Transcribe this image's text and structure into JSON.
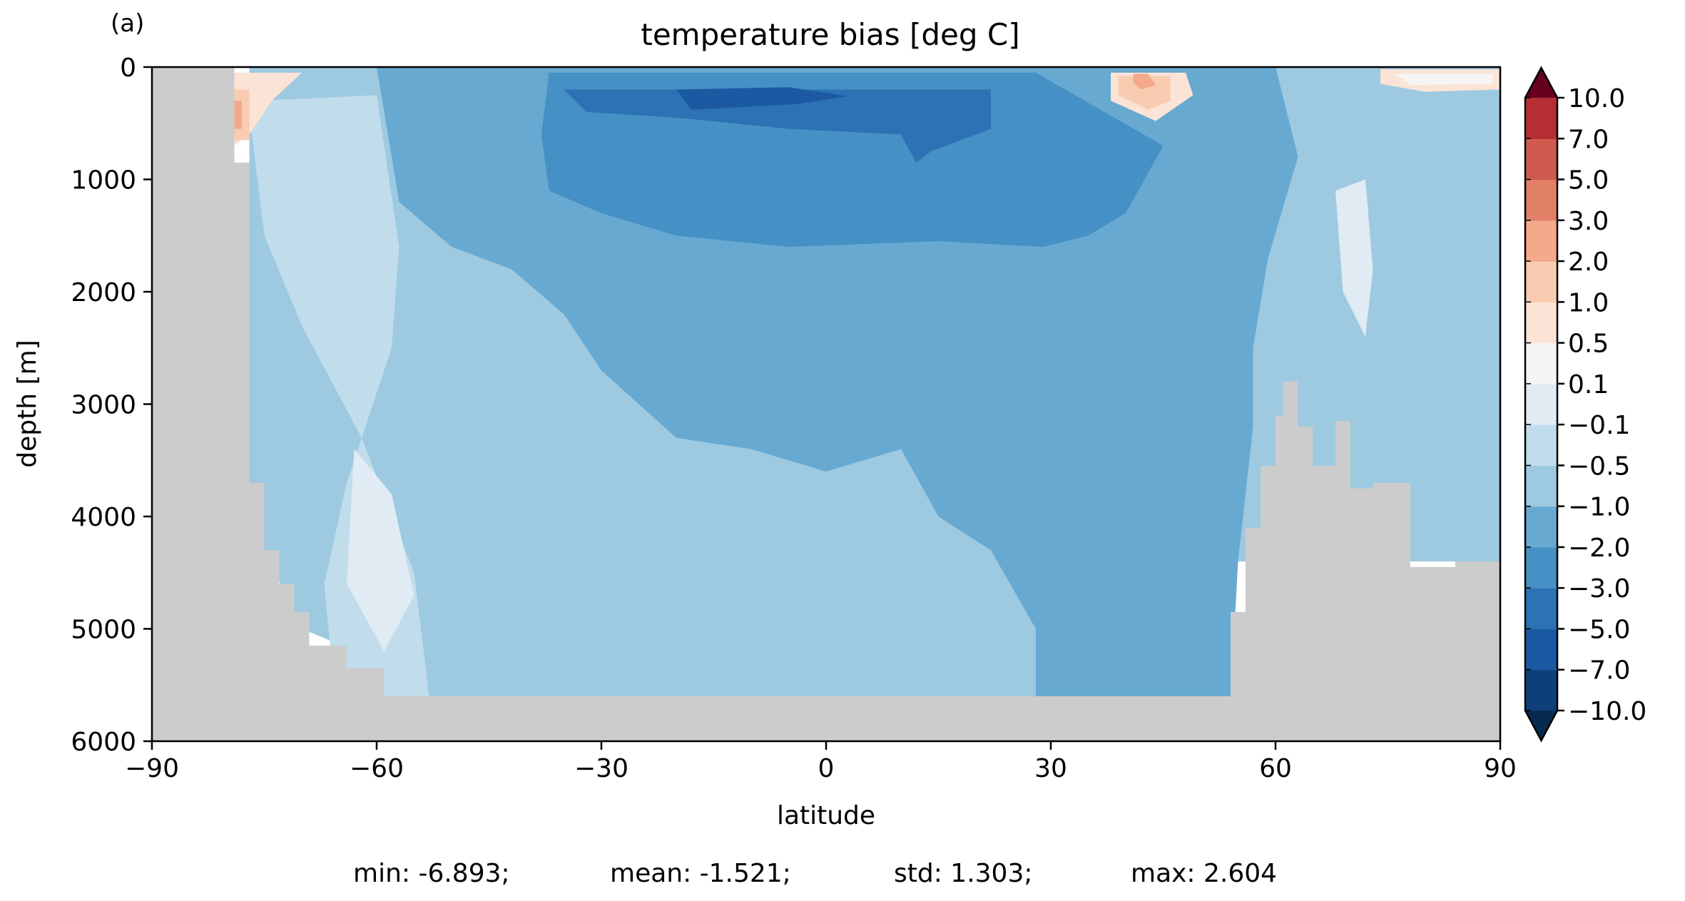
{
  "panel_label": "(a)",
  "chart_data": {
    "type": "contour",
    "title": "temperature bias [deg C]",
    "xlabel": "latitude",
    "ylabel": "depth [m]",
    "xlim": [
      -90,
      90
    ],
    "ylim": [
      6000,
      0
    ],
    "xticks": [
      -90,
      -60,
      -30,
      0,
      30,
      60,
      90
    ],
    "xtick_labels": [
      "−90",
      "−60",
      "−30",
      "0",
      "30",
      "60",
      "90"
    ],
    "yticks": [
      0,
      1000,
      2000,
      3000,
      4000,
      5000,
      6000
    ],
    "ytick_labels": [
      "0",
      "1000",
      "2000",
      "3000",
      "4000",
      "5000",
      "6000"
    ],
    "colorbar": {
      "extend": "both",
      "levels": [
        -10,
        -7,
        -5,
        -3,
        -2,
        -1,
        -0.5,
        -0.1,
        0.1,
        0.5,
        1,
        2,
        3,
        5,
        7,
        10
      ],
      "labels": [
        "−10.0",
        "−7.0",
        "−5.0",
        "−3.0",
        "−2.0",
        "−1.0",
        "−0.5",
        "−0.1",
        "0.1",
        "0.5",
        "1.0",
        "2.0",
        "3.0",
        "5.0",
        "7.0",
        "10.0"
      ],
      "colors": [
        "#0f3f79",
        "#1b5aa2",
        "#2c72b4",
        "#4590c4",
        "#67a9d1",
        "#9dc9e1",
        "#c1ddec",
        "#e0ebf3",
        "#f6f5f4",
        "#fbe3d6",
        "#f9ccb1",
        "#f3a98a",
        "#e27f67",
        "#cf5b4e",
        "#b42e34",
        "#920f28"
      ],
      "under_color": "#072b50",
      "over_color": "#67001f"
    },
    "land_color": "#cccccc",
    "stats": {
      "min": "min: -6.893;",
      "mean": "mean: -1.521;",
      "std": "std: 1.303;",
      "max": "max: 2.604"
    },
    "bathymetry_depth_m": [
      [
        -90,
        0
      ],
      [
        -79,
        0
      ],
      [
        -79,
        850
      ],
      [
        -77,
        850
      ],
      [
        -77,
        3700
      ],
      [
        -75,
        3700
      ],
      [
        -75,
        4300
      ],
      [
        -73,
        4300
      ],
      [
        -73,
        4600
      ],
      [
        -71,
        4600
      ],
      [
        -71,
        4850
      ],
      [
        -69,
        4850
      ],
      [
        -69,
        5150
      ],
      [
        -64,
        5150
      ],
      [
        -64,
        5350
      ],
      [
        -59,
        5350
      ],
      [
        -59,
        5600
      ],
      [
        54,
        5600
      ],
      [
        54,
        4850
      ],
      [
        56,
        4850
      ],
      [
        56,
        4100
      ],
      [
        58,
        4100
      ],
      [
        58,
        3550
      ],
      [
        60,
        3550
      ],
      [
        60,
        3100
      ],
      [
        61,
        3100
      ],
      [
        61,
        2800
      ],
      [
        63,
        2800
      ],
      [
        63,
        3200
      ],
      [
        65,
        3200
      ],
      [
        65,
        3550
      ],
      [
        68,
        3550
      ],
      [
        68,
        3150
      ],
      [
        70,
        3150
      ],
      [
        70,
        3750
      ],
      [
        73,
        3750
      ],
      [
        73,
        3700
      ],
      [
        78,
        3700
      ],
      [
        78,
        4450
      ],
      [
        84,
        4450
      ],
      [
        84,
        4400
      ],
      [
        90,
        4400
      ],
      [
        90,
        6000
      ],
      [
        -90,
        6000
      ]
    ],
    "field_regions": [
      {
        "level": -1.0,
        "polygon": [
          [
            -77,
            0
          ],
          [
            90,
            0
          ],
          [
            90,
            4400
          ],
          [
            54,
            4400
          ],
          [
            54,
            5600
          ],
          [
            -59,
            5600
          ],
          [
            -59,
            5300
          ],
          [
            -70,
            5000
          ],
          [
            -75,
            4300
          ],
          [
            -77,
            3700
          ]
        ]
      },
      {
        "level": -0.5,
        "polygon": [
          [
            -76,
            300
          ],
          [
            -60,
            250
          ],
          [
            -57,
            1600
          ],
          [
            -58,
            2500
          ],
          [
            -64,
            3700
          ],
          [
            -67,
            4600
          ],
          [
            -66,
            5300
          ],
          [
            -60,
            5600
          ],
          [
            -53,
            5600
          ],
          [
            -55,
            4500
          ],
          [
            -62,
            3300
          ],
          [
            -70,
            2300
          ],
          [
            -75,
            1500
          ],
          [
            -77,
            400
          ]
        ]
      },
      {
        "level": -2.0,
        "polygon": [
          [
            -60,
            0
          ],
          [
            60,
            0
          ],
          [
            63,
            800
          ],
          [
            59,
            1700
          ],
          [
            57,
            2500
          ],
          [
            57,
            3200
          ],
          [
            55,
            4400
          ],
          [
            54,
            5600
          ],
          [
            28,
            5600
          ],
          [
            28,
            5000
          ],
          [
            22,
            4300
          ],
          [
            15,
            4000
          ],
          [
            10,
            3400
          ],
          [
            0,
            3600
          ],
          [
            -5,
            3500
          ],
          [
            -10,
            3400
          ],
          [
            -20,
            3300
          ],
          [
            -30,
            2700
          ],
          [
            -35,
            2200
          ],
          [
            -42,
            1800
          ],
          [
            -50,
            1600
          ],
          [
            -57,
            1200
          ]
        ]
      },
      {
        "level": -3.0,
        "polygon": [
          [
            -37,
            50
          ],
          [
            28,
            50
          ],
          [
            45,
            700
          ],
          [
            40,
            1300
          ],
          [
            35,
            1500
          ],
          [
            29,
            1600
          ],
          [
            15,
            1550
          ],
          [
            -5,
            1600
          ],
          [
            -20,
            1500
          ],
          [
            -30,
            1300
          ],
          [
            -37,
            1100
          ],
          [
            -38,
            600
          ]
        ]
      },
      {
        "level": -5.0,
        "polygon": [
          [
            -35,
            200
          ],
          [
            22,
            200
          ],
          [
            22,
            550
          ],
          [
            14,
            750
          ],
          [
            12,
            850
          ],
          [
            10,
            600
          ],
          [
            -5,
            550
          ],
          [
            -20,
            450
          ],
          [
            -32,
            400
          ]
        ]
      },
      {
        "level": -7.0,
        "polygon": [
          [
            -20,
            200
          ],
          [
            -5,
            180
          ],
          [
            3,
            260
          ],
          [
            -4,
            330
          ],
          [
            -18,
            380
          ]
        ]
      },
      {
        "level": -0.1,
        "polygon": [
          [
            68,
            1100
          ],
          [
            72,
            1000
          ],
          [
            73,
            1800
          ],
          [
            72,
            2400
          ],
          [
            69,
            2000
          ]
        ]
      },
      {
        "level": -0.1,
        "polygon": [
          [
            -63,
            3400
          ],
          [
            -58,
            3800
          ],
          [
            -55,
            4700
          ],
          [
            -59,
            5200
          ],
          [
            -64,
            4600
          ]
        ]
      },
      {
        "level": 0.5,
        "polygon": [
          [
            -79,
            50
          ],
          [
            -70,
            50
          ],
          [
            -74,
            300
          ],
          [
            -77,
            600
          ],
          [
            -79,
            700
          ]
        ]
      },
      {
        "level": 1.0,
        "polygon": [
          [
            -79,
            200
          ],
          [
            -77,
            200
          ],
          [
            -77,
            650
          ],
          [
            -79,
            650
          ]
        ]
      },
      {
        "level": 2.0,
        "polygon": [
          [
            -79,
            300
          ],
          [
            -78,
            300
          ],
          [
            -78,
            550
          ],
          [
            -79,
            550
          ]
        ]
      },
      {
        "level": 0.5,
        "polygon": [
          [
            38,
            50
          ],
          [
            48,
            50
          ],
          [
            49,
            250
          ],
          [
            44,
            480
          ],
          [
            38,
            300
          ]
        ]
      },
      {
        "level": 1.0,
        "polygon": [
          [
            39,
            80
          ],
          [
            46,
            80
          ],
          [
            46,
            300
          ],
          [
            43,
            380
          ],
          [
            39,
            250
          ]
        ]
      },
      {
        "level": 2.0,
        "polygon": [
          [
            41,
            60
          ],
          [
            43,
            60
          ],
          [
            44,
            160
          ],
          [
            42,
            200
          ],
          [
            41,
            140
          ]
        ]
      },
      {
        "level": 0.5,
        "polygon": [
          [
            74,
            20
          ],
          [
            90,
            20
          ],
          [
            90,
            200
          ],
          [
            80,
            220
          ],
          [
            74,
            150
          ]
        ]
      },
      {
        "level": 0.1,
        "polygon": [
          [
            76,
            60
          ],
          [
            89,
            60
          ],
          [
            89,
            150
          ],
          [
            78,
            160
          ]
        ]
      }
    ]
  }
}
